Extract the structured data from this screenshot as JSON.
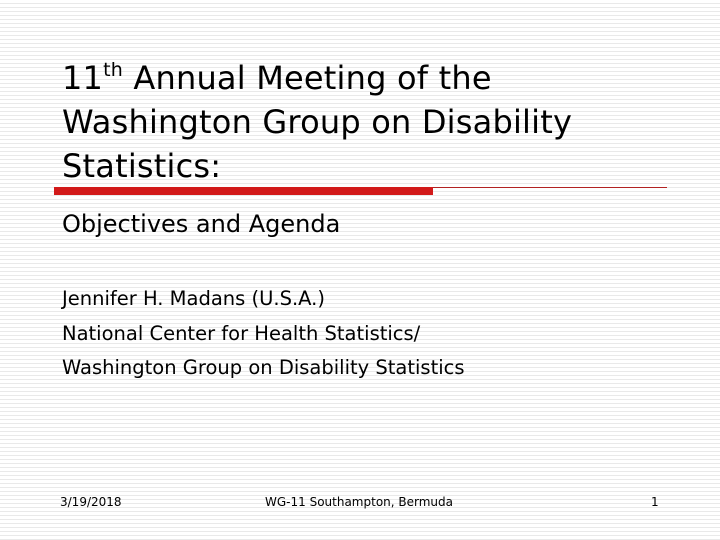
{
  "slide": {
    "title_prefix": "11",
    "title_sup": "th",
    "title_line1_rest": " Annual Meeting of the",
    "title_line2": "Washington Group on Disability",
    "title_line3": "Statistics:",
    "subtitle": "Objectives and Agenda",
    "author_lines": [
      "Jennifer H. Madans (U.S.A.)",
      "National Center for Health Statistics/",
      "Washington Group on Disability Statistics"
    ],
    "footer": {
      "date": "3/19/2018",
      "center": "WG-11 Southampton, Bermuda",
      "page": "1"
    },
    "colors": {
      "accent_rule": "#d21a1a",
      "background_lines": "#e9e9e9"
    }
  }
}
